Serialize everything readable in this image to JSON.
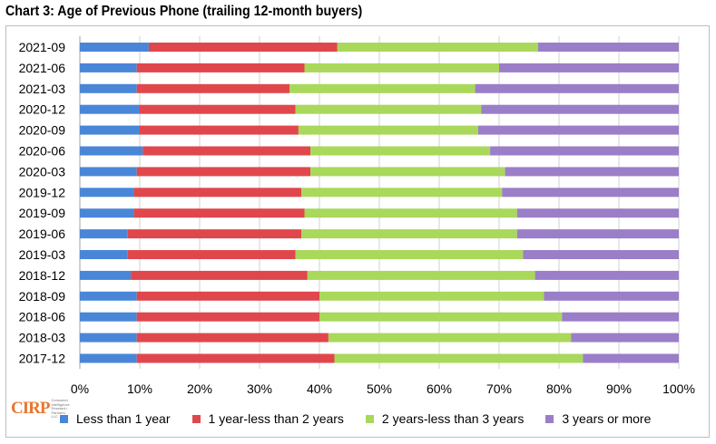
{
  "chart_data": {
    "type": "bar",
    "orientation": "horizontal",
    "stacked": true,
    "title": "Chart 3: Age of Previous Phone (trailing 12-month buyers)",
    "categories": [
      "2021-09",
      "2021-06",
      "2021-03",
      "2020-12",
      "2020-09",
      "2020-06",
      "2020-03",
      "2019-12",
      "2019-09",
      "2019-06",
      "2019-03",
      "2018-12",
      "2018-09",
      "2018-06",
      "2018-03",
      "2017-12"
    ],
    "x_ticks": [
      "0%",
      "10%",
      "20%",
      "30%",
      "40%",
      "50%",
      "60%",
      "70%",
      "80%",
      "90%",
      "100%"
    ],
    "xlim": [
      0,
      100
    ],
    "grid": true,
    "legend_position": "bottom",
    "series": [
      {
        "name": "Less than 1 year",
        "color": "#4a86d8",
        "values": [
          11.5,
          9.5,
          9.5,
          10,
          10,
          10.5,
          9.5,
          9,
          9,
          8,
          8,
          8.5,
          9.5,
          9.5,
          9.5,
          9.5
        ]
      },
      {
        "name": "1 year-less than 2 years",
        "color": "#e0474c",
        "values": [
          31.5,
          28,
          25.5,
          26,
          26.5,
          28,
          29,
          28,
          28.5,
          29,
          28,
          29.5,
          30.5,
          30.5,
          32,
          33
        ]
      },
      {
        "name": "2 years-less than 3 years",
        "color": "#a9d85b",
        "values": [
          33.5,
          32.5,
          31,
          31,
          30,
          30,
          32.5,
          33.5,
          35.5,
          36,
          38,
          38,
          37.5,
          40.5,
          40.5,
          41.5
        ]
      },
      {
        "name": "3 years or more",
        "color": "#9b7ec8",
        "values": [
          23.5,
          30,
          34,
          33,
          33.5,
          31.5,
          29,
          29.5,
          27,
          27,
          26,
          24,
          22.5,
          19.5,
          18,
          16
        ]
      }
    ]
  },
  "logo": {
    "mark": "CIRP",
    "sub": "Consumer Intelligence Research Partners, LLC"
  }
}
